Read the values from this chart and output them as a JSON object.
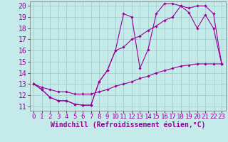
{
  "xlabel": "Windchill (Refroidissement éolien,°C)",
  "background_color": "#c5eaea",
  "grid_color": "#9ec8c8",
  "line_color": "#990099",
  "xlim": [
    -0.5,
    23.5
  ],
  "ylim": [
    10.6,
    20.4
  ],
  "xticks": [
    0,
    1,
    2,
    3,
    4,
    5,
    6,
    7,
    8,
    9,
    10,
    11,
    12,
    13,
    14,
    15,
    16,
    17,
    18,
    19,
    20,
    21,
    22,
    23
  ],
  "yticks": [
    11,
    12,
    13,
    14,
    15,
    16,
    17,
    18,
    19,
    20
  ],
  "curve1_x": [
    0,
    1,
    2,
    3,
    4,
    5,
    6,
    7,
    8,
    9,
    10,
    11,
    12,
    13,
    14,
    15,
    16,
    17,
    18,
    19,
    20,
    21,
    22,
    23
  ],
  "curve1_y": [
    13.0,
    12.5,
    11.8,
    11.5,
    11.5,
    11.2,
    11.1,
    11.1,
    13.2,
    14.2,
    16.0,
    19.3,
    19.0,
    14.4,
    16.1,
    19.3,
    20.2,
    20.2,
    20.0,
    19.4,
    18.0,
    19.2,
    18.0,
    14.8
  ],
  "curve2_x": [
    0,
    1,
    2,
    3,
    4,
    5,
    6,
    7,
    8,
    9,
    10,
    11,
    12,
    13,
    14,
    15,
    16,
    17,
    18,
    19,
    20,
    21,
    22,
    23
  ],
  "curve2_y": [
    13.0,
    12.5,
    11.8,
    11.5,
    11.5,
    11.2,
    11.1,
    11.1,
    13.2,
    14.2,
    16.0,
    16.3,
    17.0,
    17.3,
    17.8,
    18.2,
    18.7,
    19.0,
    20.0,
    19.8,
    20.0,
    20.0,
    19.3,
    14.8
  ],
  "curve3_x": [
    0,
    1,
    2,
    3,
    4,
    5,
    6,
    7,
    8,
    9,
    10,
    11,
    12,
    13,
    14,
    15,
    16,
    17,
    18,
    19,
    20,
    21,
    22,
    23
  ],
  "curve3_y": [
    13.0,
    12.7,
    12.5,
    12.3,
    12.3,
    12.1,
    12.1,
    12.1,
    12.3,
    12.5,
    12.8,
    13.0,
    13.2,
    13.5,
    13.7,
    14.0,
    14.2,
    14.4,
    14.6,
    14.7,
    14.8,
    14.8,
    14.8,
    14.8
  ],
  "xlabel_fontsize": 7,
  "tick_fontsize": 6.5
}
